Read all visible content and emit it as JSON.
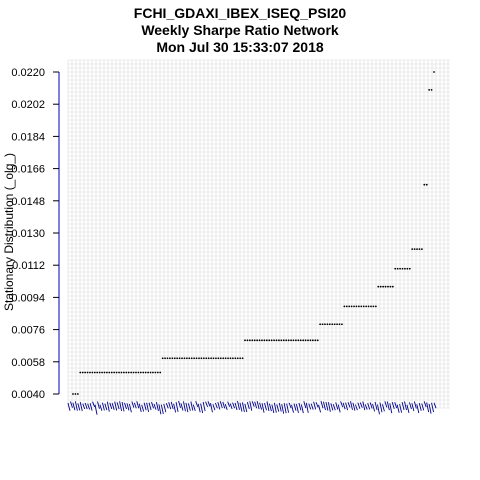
{
  "title_lines": [
    "FCHI_GDAXI_IBEX_ISEQ_PSI20",
    "Weekly  Sharpe Ratio Network",
    "Mon Jul 30 15:33:07 2018"
  ],
  "chart_data": {
    "type": "scatter",
    "ylabel": "Stationary Distribution (_olg_)",
    "yticks": [
      "0.0220",
      "0.0202",
      "0.0184",
      "0.0166",
      "0.0148",
      "0.0130",
      "0.0112",
      "0.0094",
      "0.0076",
      "0.0058",
      "0.0040"
    ],
    "ylim": [
      0.004,
      0.022
    ],
    "grid": true,
    "series": [
      {
        "marker": "dot",
        "color": "#000000",
        "runs": [
          {
            "count": 3,
            "y": 0.004
          },
          {
            "count": 34,
            "y": 0.0052
          },
          {
            "count": 34,
            "y": 0.006
          },
          {
            "count": 31,
            "y": 0.007
          },
          {
            "count": 10,
            "y": 0.0079
          },
          {
            "count": 14,
            "y": 0.0089
          },
          {
            "count": 7,
            "y": 0.01
          },
          {
            "count": 7,
            "y": 0.011
          },
          {
            "count": 5,
            "y": 0.0121
          },
          {
            "count": 2,
            "y": 0.0157
          },
          {
            "count": 2,
            "y": 0.021
          },
          {
            "count": 1,
            "y": 0.022
          }
        ]
      }
    ],
    "node_labels": {
      "color": "#00008b",
      "count": 150
    }
  }
}
